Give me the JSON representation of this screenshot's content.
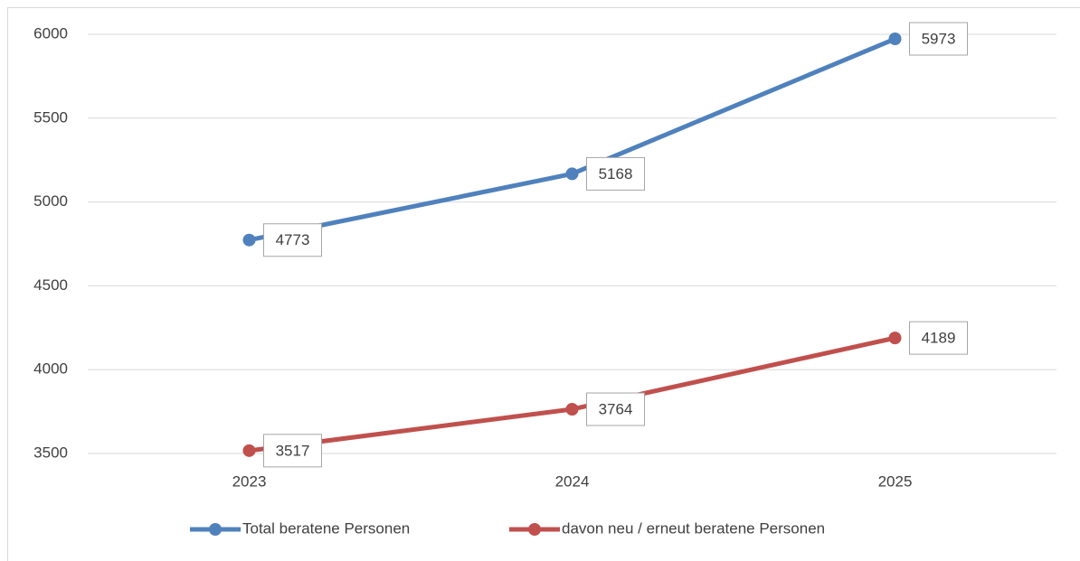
{
  "chart_data": {
    "type": "line",
    "categories": [
      "2023",
      "2024",
      "2025"
    ],
    "series": [
      {
        "name": "Total beratene Personen",
        "color": "#4f81bd",
        "values": [
          4773,
          5168,
          5973
        ]
      },
      {
        "name": "davon neu / erneut beratene Personen",
        "color": "#c0504d",
        "values": [
          3517,
          3764,
          4189
        ]
      }
    ],
    "ylim": [
      3500,
      6000
    ],
    "yticks": [
      3500,
      4000,
      4500,
      5000,
      5500,
      6000
    ],
    "grid": true,
    "legend": "bottom",
    "data_labels": true
  }
}
